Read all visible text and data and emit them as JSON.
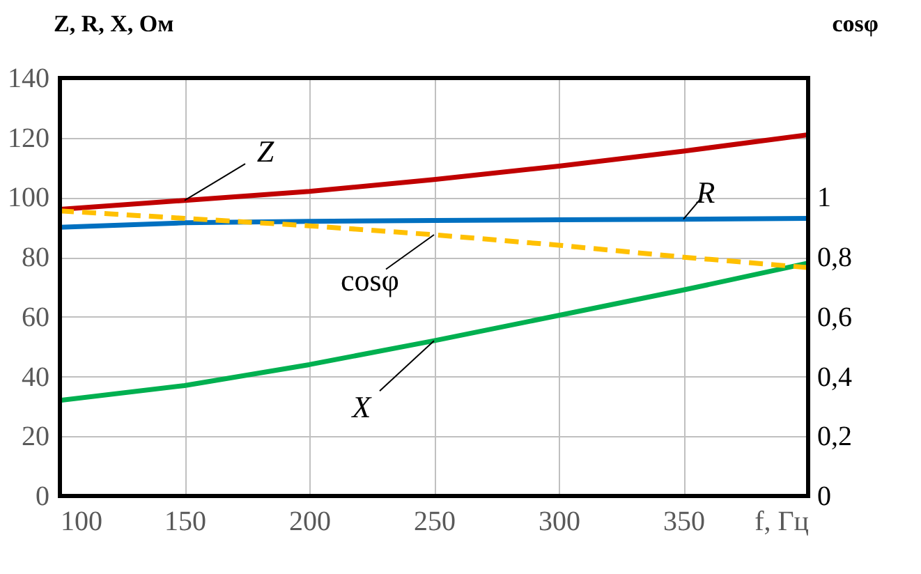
{
  "chart_data": {
    "type": "line",
    "ylabel": "Z, R, X, Ом",
    "y2label": "cosφ",
    "xlabel": "f, Гц",
    "x": [
      100,
      150,
      200,
      250,
      300,
      350,
      400
    ],
    "series": [
      {
        "name": "Z",
        "color": "#c00000",
        "values": [
          96,
          99,
          102,
          106,
          110.5,
          115.5,
          121
        ]
      },
      {
        "name": "R",
        "color": "#0070c0",
        "values": [
          90,
          91.5,
          92,
          92.3,
          92.5,
          92.7,
          93
        ]
      },
      {
        "name": "cosφ",
        "color": "#ffc000",
        "axis": "y2",
        "line_style": "dashed",
        "values": [
          0.955,
          0.93,
          0.905,
          0.875,
          0.84,
          0.8,
          0.765
        ]
      },
      {
        "name": "X",
        "color": "#00b050",
        "values": [
          32,
          37,
          44,
          52,
          60.5,
          69,
          78
        ]
      }
    ],
    "xlim": [
      100,
      400
    ],
    "xticks": [
      100,
      150,
      200,
      250,
      300,
      350,
      {
        "value": 400,
        "label": null
      }
    ],
    "ylim": [
      0,
      140
    ],
    "yticks": [
      0,
      20,
      40,
      60,
      80,
      100,
      120,
      140
    ],
    "y2lim": [
      0,
      1.4
    ],
    "y2ticks": [
      0,
      {
        "value": 0.2,
        "label": "0,2"
      },
      {
        "value": 0.4,
        "label": "0,4"
      },
      {
        "value": 0.6,
        "label": "0,6"
      },
      {
        "value": 0.8,
        "label": "0,8"
      },
      1
    ],
    "grid": true,
    "marker": "none",
    "line_style": "solid"
  }
}
